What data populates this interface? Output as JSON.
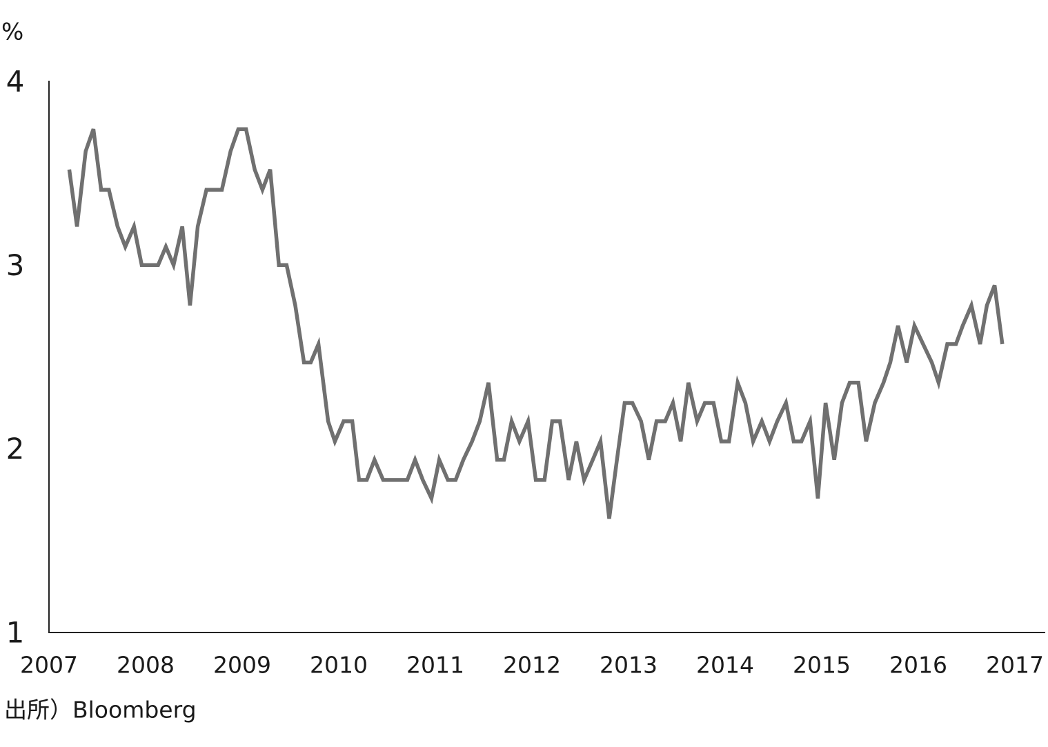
{
  "chart_data": {
    "type": "line",
    "y_unit": "%",
    "source": "出所）Bloomberg",
    "xlim": [
      2007,
      2017
    ],
    "xticks": [
      2007,
      2008,
      2009,
      2010,
      2011,
      2012,
      2013,
      2014,
      2015,
      2016,
      2017
    ],
    "ylim": [
      1,
      4
    ],
    "yticks": [
      1,
      2,
      3,
      4
    ],
    "grid": false,
    "x": [
      2007.21,
      2007.29,
      2007.38,
      2007.46,
      2007.54,
      2007.62,
      2007.71,
      2007.79,
      2007.88,
      2007.96,
      2008.04,
      2008.13,
      2008.21,
      2008.29,
      2008.38,
      2008.46,
      2008.54,
      2008.63,
      2008.71,
      2008.79,
      2008.88,
      2008.96,
      2009.04,
      2009.13,
      2009.21,
      2009.29,
      2009.38,
      2009.46,
      2009.55,
      2009.64,
      2009.71,
      2009.79,
      2009.89,
      2009.96,
      2010.05,
      2010.14,
      2010.21,
      2010.29,
      2010.37,
      2010.46,
      2010.54,
      2010.62,
      2010.71,
      2010.79,
      2010.87,
      2010.96,
      2011.04,
      2011.13,
      2011.21,
      2011.29,
      2011.38,
      2011.46,
      2011.55,
      2011.64,
      2011.71,
      2011.79,
      2011.87,
      2011.96,
      2012.04,
      2012.13,
      2012.21,
      2012.29,
      2012.38,
      2012.46,
      2012.54,
      2012.63,
      2012.71,
      2012.8,
      2012.88,
      2012.96,
      2013.04,
      2013.13,
      2013.21,
      2013.29,
      2013.38,
      2013.46,
      2013.54,
      2013.62,
      2013.71,
      2013.79,
      2013.88,
      2013.96,
      2014.04,
      2014.13,
      2014.21,
      2014.29,
      2014.38,
      2014.46,
      2014.54,
      2014.63,
      2014.71,
      2014.79,
      2014.88,
      2014.96,
      2015.04,
      2015.13,
      2015.21,
      2015.29,
      2015.38,
      2015.46,
      2015.55,
      2015.64,
      2015.71,
      2015.79,
      2015.88,
      2015.96,
      2016.05,
      2016.14,
      2016.21,
      2016.3,
      2016.39,
      2016.46,
      2016.55,
      2016.64,
      2016.71,
      2016.79,
      2016.87
    ],
    "series": [
      {
        "color": "#707070",
        "values": [
          3.52,
          3.21,
          3.62,
          3.74,
          3.41,
          3.41,
          3.21,
          3.1,
          3.21,
          3.0,
          3.0,
          3.0,
          3.1,
          3.0,
          3.21,
          2.78,
          3.21,
          3.41,
          3.41,
          3.41,
          3.62,
          3.74,
          3.74,
          3.52,
          3.41,
          3.52,
          3.0,
          3.0,
          2.78,
          2.47,
          2.47,
          2.57,
          2.15,
          2.04,
          2.15,
          2.15,
          1.83,
          1.83,
          1.94,
          1.83,
          1.83,
          1.83,
          1.83,
          1.94,
          1.83,
          1.73,
          1.94,
          1.83,
          1.83,
          1.94,
          2.04,
          2.15,
          2.36,
          1.94,
          1.94,
          2.15,
          2.04,
          2.15,
          1.83,
          1.83,
          2.15,
          2.15,
          1.83,
          2.04,
          1.83,
          1.94,
          2.04,
          1.62,
          1.94,
          2.25,
          2.25,
          2.15,
          1.94,
          2.15,
          2.15,
          2.25,
          2.04,
          2.36,
          2.15,
          2.25,
          2.25,
          2.04,
          2.04,
          2.36,
          2.25,
          2.04,
          2.15,
          2.04,
          2.15,
          2.25,
          2.04,
          2.04,
          2.15,
          1.73,
          2.25,
          1.94,
          2.25,
          2.36,
          2.36,
          2.04,
          2.25,
          2.36,
          2.47,
          2.67,
          2.47,
          2.67,
          2.57,
          2.47,
          2.36,
          2.57,
          2.57,
          2.67,
          2.78,
          2.57,
          2.78,
          2.89,
          2.57
        ]
      }
    ]
  }
}
